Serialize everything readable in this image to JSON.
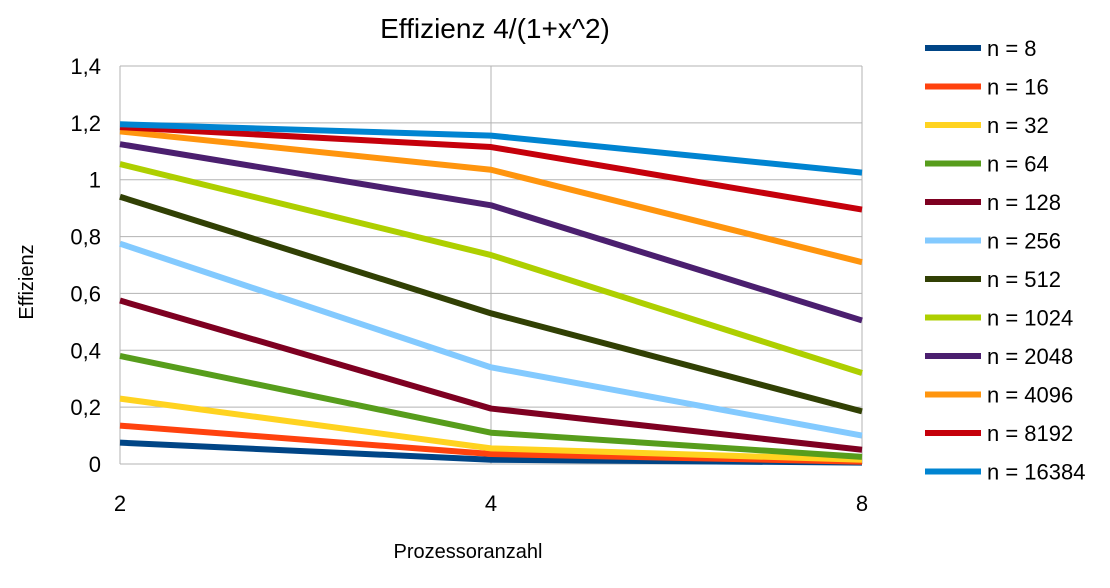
{
  "chart_data": {
    "type": "line",
    "title": "Effizienz 4/(1+x^2)",
    "xlabel": "Prozessoranzahl",
    "ylabel": "Effizienz",
    "x": [
      2,
      4,
      8
    ],
    "x_tick_labels": [
      "2",
      "4",
      "8"
    ],
    "ylim": [
      0,
      1.4
    ],
    "y_ticks": [
      0,
      0.2,
      0.4,
      0.6,
      0.8,
      1,
      1.2,
      1.4
    ],
    "y_tick_labels": [
      "0",
      "0,2",
      "0,4",
      "0,6",
      "0,8",
      "1",
      "1,2",
      "1,4"
    ],
    "grid": true,
    "legend_position": "right",
    "series": [
      {
        "name": "n = 8",
        "color": "#004586",
        "values": [
          0.075,
          0.015,
          0.005
        ]
      },
      {
        "name": "n = 16",
        "color": "#ff420e",
        "values": [
          0.135,
          0.035,
          0.008
        ]
      },
      {
        "name": "n = 32",
        "color": "#ffd320",
        "values": [
          0.23,
          0.055,
          0.015
        ]
      },
      {
        "name": "n = 64",
        "color": "#579d1c",
        "values": [
          0.38,
          0.11,
          0.025
        ]
      },
      {
        "name": "n = 128",
        "color": "#7e0021",
        "values": [
          0.575,
          0.195,
          0.05
        ]
      },
      {
        "name": "n = 256",
        "color": "#83caff",
        "values": [
          0.775,
          0.34,
          0.1
        ]
      },
      {
        "name": "n = 512",
        "color": "#314004",
        "values": [
          0.94,
          0.53,
          0.185
        ]
      },
      {
        "name": "n = 1024",
        "color": "#aecf00",
        "values": [
          1.055,
          0.735,
          0.32
        ]
      },
      {
        "name": "n = 2048",
        "color": "#4b1f6f",
        "values": [
          1.125,
          0.91,
          0.505
        ]
      },
      {
        "name": "n = 4096",
        "color": "#ff950e",
        "values": [
          1.17,
          1.035,
          0.71
        ]
      },
      {
        "name": "n = 8192",
        "color": "#c5000b",
        "values": [
          1.185,
          1.115,
          0.895
        ]
      },
      {
        "name": "n = 16384",
        "color": "#0084d1",
        "values": [
          1.195,
          1.155,
          1.025
        ]
      }
    ]
  }
}
